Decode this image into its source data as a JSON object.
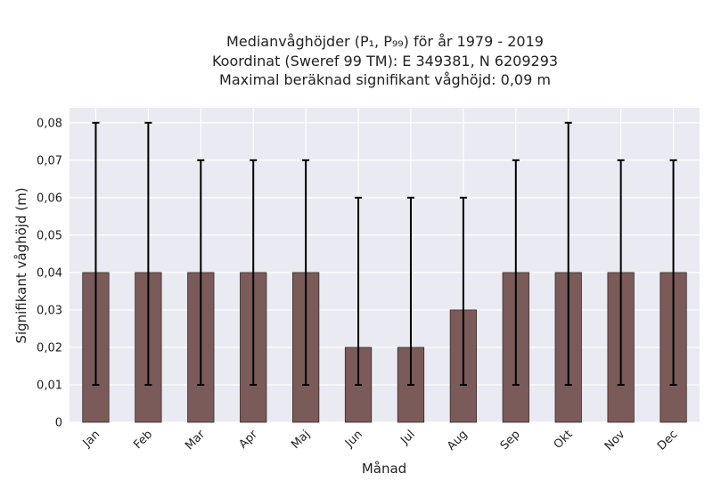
{
  "chart_data": {
    "type": "bar",
    "title_lines": [
      "Medianvåghöjder (P₁, P₉₉) för år 1979 - 2019",
      "Koordinat (Sweref 99 TM): E 349381, N 6209293",
      "Maximal beräknad signifikant våghöjd: 0,09 m"
    ],
    "xlabel": "Månad",
    "ylabel": "Signifikant våghöjd (m)",
    "categories": [
      "Jan",
      "Feb",
      "Mar",
      "Apr",
      "Maj",
      "Jun",
      "Jul",
      "Aug",
      "Sep",
      "Okt",
      "Nov",
      "Dec"
    ],
    "values": [
      0.04,
      0.04,
      0.04,
      0.04,
      0.04,
      0.02,
      0.02,
      0.03,
      0.04,
      0.04,
      0.04,
      0.04
    ],
    "error_low": [
      0.01,
      0.01,
      0.01,
      0.01,
      0.01,
      0.01,
      0.01,
      0.01,
      0.01,
      0.01,
      0.01,
      0.01
    ],
    "error_high": [
      0.08,
      0.08,
      0.07,
      0.07,
      0.07,
      0.06,
      0.06,
      0.06,
      0.07,
      0.08,
      0.07,
      0.07
    ],
    "ylim": [
      0,
      0.084
    ],
    "yticks": [
      0,
      0.01,
      0.02,
      0.03,
      0.04,
      0.05,
      0.06,
      0.07,
      0.08
    ],
    "ytick_labels": [
      "0",
      "0,01",
      "0,02",
      "0,03",
      "0,04",
      "0,05",
      "0,06",
      "0,07",
      "0,08"
    ],
    "grid": true,
    "colors": {
      "bar": "#7b5a5a",
      "bar_edge": "#3a2a2a",
      "error": "#000000",
      "plot_bg": "#eaeaf2",
      "grid": "#ffffff"
    }
  }
}
